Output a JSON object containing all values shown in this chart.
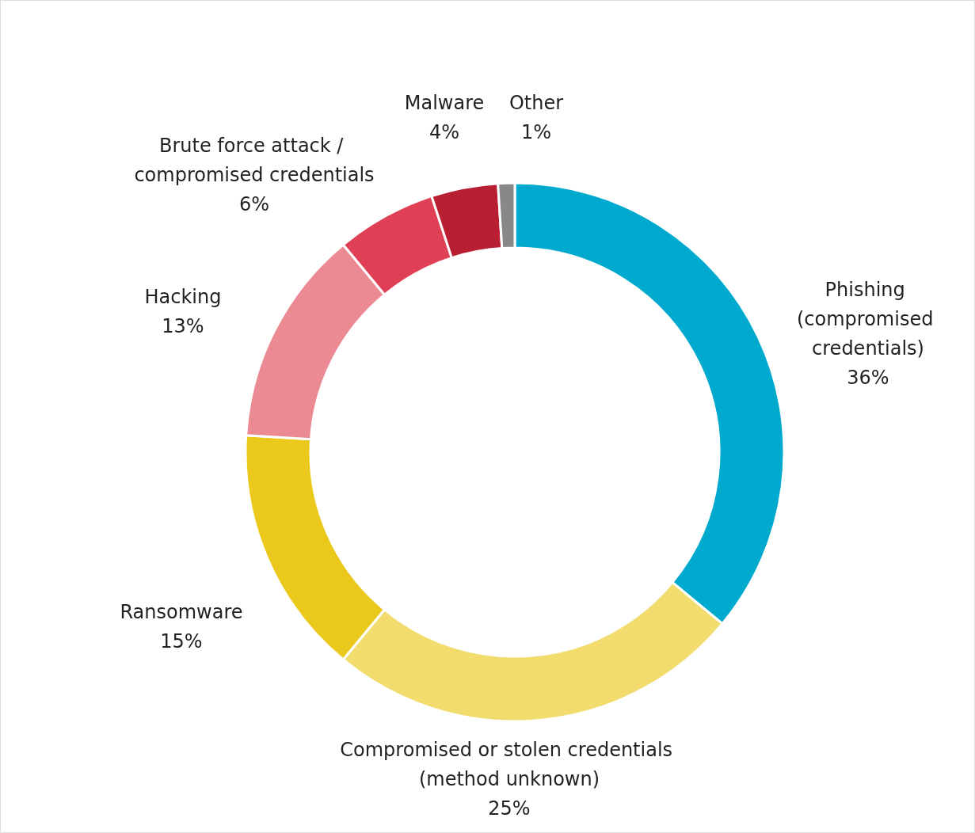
{
  "chart_data": {
    "type": "donut",
    "categories": [
      "Phishing (compromised credentials)",
      "Compromised or stolen credentials (method unknown)",
      "Ransomware",
      "Hacking",
      "Brute force attack / compromised credentials",
      "Malware",
      "Other"
    ],
    "values": [
      36,
      25,
      15,
      13,
      6,
      4,
      1
    ],
    "value_labels": [
      "36%",
      "25%",
      "15%",
      "13%",
      "6%",
      "4%",
      "1%"
    ],
    "colors": [
      "#00a9ce",
      "#f2dc6e",
      "#ebc91c",
      "#ec8a94",
      "#e04055",
      "#b81f33",
      "#888888"
    ],
    "legend": false
  }
}
